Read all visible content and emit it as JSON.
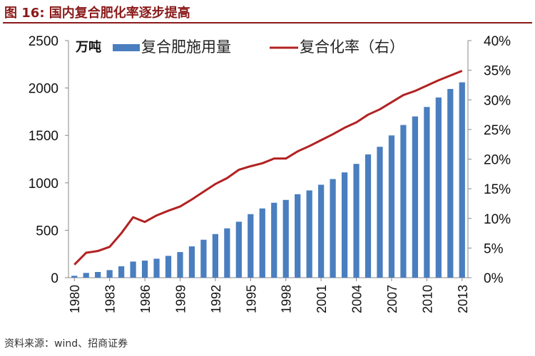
{
  "title": "图 16: 国内复合肥化率逐步提高",
  "source": "资料来源：wind、招商证券",
  "chart_data": {
    "type": "bar+line",
    "left_unit": "万吨",
    "categories": [
      1980,
      1981,
      1982,
      1983,
      1984,
      1985,
      1986,
      1987,
      1988,
      1989,
      1990,
      1991,
      1992,
      1993,
      1994,
      1995,
      1996,
      1997,
      1998,
      1999,
      2000,
      2001,
      2002,
      2003,
      2004,
      2005,
      2006,
      2007,
      2008,
      2009,
      2010,
      2011,
      2012,
      2013
    ],
    "xtick_labels": [
      "1980",
      "1983",
      "1986",
      "1989",
      "1992",
      "1995",
      "1998",
      "2001",
      "2004",
      "2007",
      "2010",
      "2013"
    ],
    "series": [
      {
        "name": "复合肥施用量",
        "type": "bar",
        "axis": "left",
        "color": "#4a7ebf",
        "values": [
          20,
          50,
          60,
          80,
          120,
          170,
          180,
          200,
          230,
          270,
          330,
          400,
          460,
          520,
          590,
          670,
          730,
          790,
          820,
          880,
          920,
          980,
          1040,
          1110,
          1200,
          1300,
          1380,
          1500,
          1610,
          1700,
          1800,
          1900,
          1990,
          2060
        ]
      },
      {
        "name": "复合化率（右）",
        "type": "line",
        "axis": "right",
        "color": "#b22222",
        "values": [
          2.2,
          4.2,
          4.5,
          5.2,
          7.5,
          10.2,
          9.4,
          10.5,
          11.3,
          12.0,
          13.2,
          14.5,
          15.8,
          16.8,
          18.2,
          18.8,
          19.3,
          20.1,
          20.1,
          21.3,
          22.2,
          23.2,
          24.2,
          25.3,
          26.2,
          27.5,
          28.4,
          29.6,
          30.8,
          31.5,
          32.4,
          33.3,
          34.1,
          34.9
        ]
      }
    ],
    "y_left": {
      "range": [
        0,
        2500
      ],
      "ticks": [
        "0",
        "500",
        "1000",
        "1500",
        "2000",
        "2500"
      ]
    },
    "y_right": {
      "range": [
        0,
        40
      ],
      "ticks": [
        "0%",
        "5%",
        "10%",
        "15%",
        "20%",
        "25%",
        "30%",
        "35%",
        "40%"
      ]
    },
    "grid": false,
    "legend": "top"
  }
}
